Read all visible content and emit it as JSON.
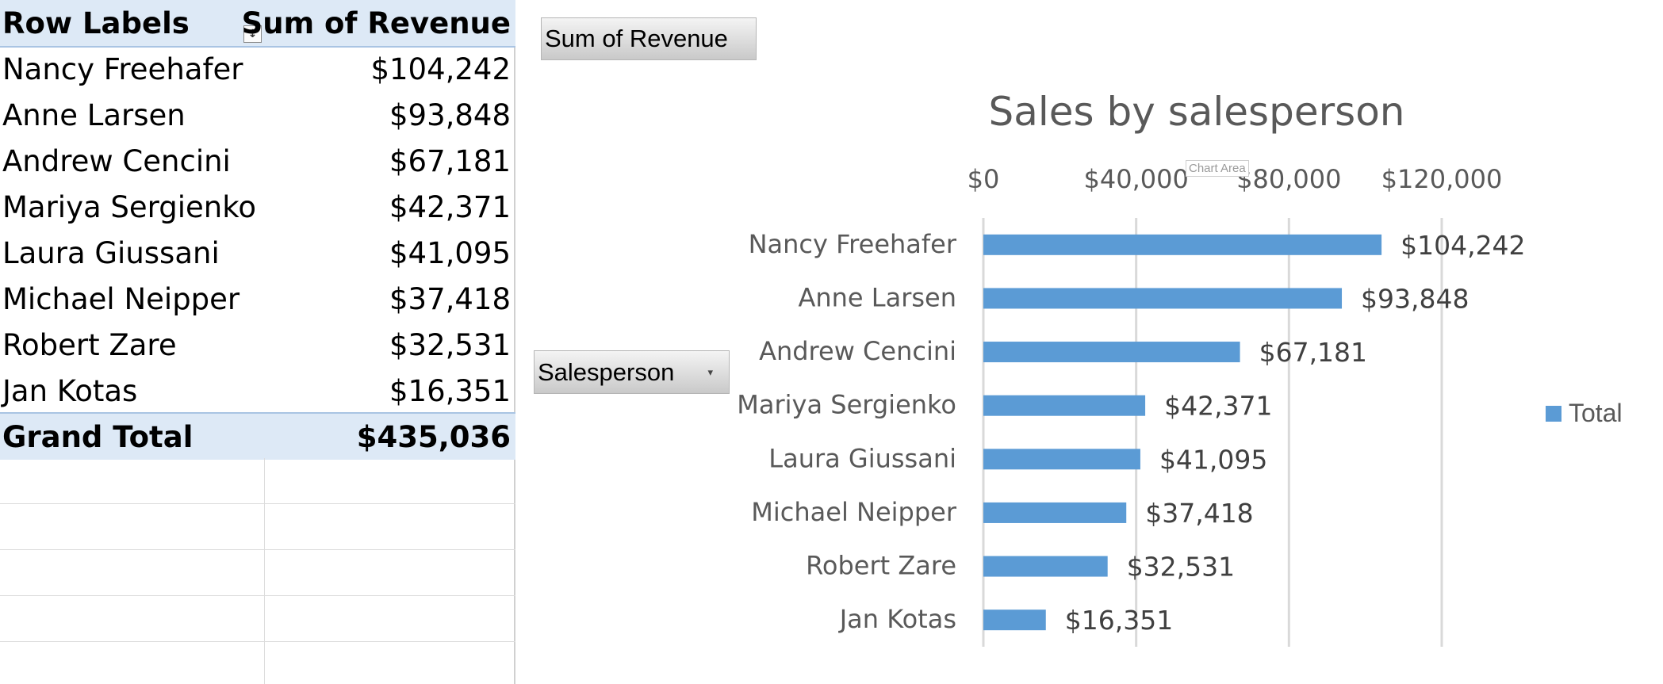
{
  "pivot": {
    "header_label": "Row Labels",
    "header_value": "Sum of Revenue",
    "filter_icon": "sort-filter-icon",
    "rows": [
      {
        "label": "Nancy Freehafer",
        "value": "$104,242"
      },
      {
        "label": "Anne Larsen",
        "value": "$93,848"
      },
      {
        "label": "Andrew Cencini",
        "value": "$67,181"
      },
      {
        "label": "Mariya Sergienko",
        "value": "$42,371"
      },
      {
        "label": "Laura Giussani",
        "value": "$41,095"
      },
      {
        "label": "Michael Neipper",
        "value": "$37,418"
      },
      {
        "label": "Robert Zare",
        "value": "$32,531"
      },
      {
        "label": "Jan Kotas",
        "value": "$16,351"
      }
    ],
    "total_label": "Grand Total",
    "total_value": "$435,036"
  },
  "chart_buttons": {
    "values_field": "Sum of Revenue",
    "axis_field": "Salesperson",
    "axis_field_icon": "dropdown-arrow-icon"
  },
  "tooltip": "Chart Area",
  "chart_data": {
    "type": "bar",
    "orientation": "horizontal",
    "title": "Sales by salesperson",
    "categories": [
      "Nancy Freehafer",
      "Anne Larsen",
      "Andrew Cencini",
      "Mariya Sergienko",
      "Laura Giussani",
      "Michael Neipper",
      "Robert Zare",
      "Jan Kotas"
    ],
    "series": [
      {
        "name": "Total",
        "values": [
          104242,
          93848,
          67181,
          42371,
          41095,
          37418,
          32531,
          16351
        ],
        "color": "#5b9bd5"
      }
    ],
    "data_labels": [
      "$104,242",
      "$93,848",
      "$67,181",
      "$42,371",
      "$41,095",
      "$37,418",
      "$32,531",
      "$16,351"
    ],
    "xlim": [
      0,
      120000
    ],
    "x_ticks": [
      0,
      40000,
      80000,
      120000
    ],
    "x_tick_labels": [
      "$0",
      "$40,000",
      "$80,000",
      "$120,000"
    ],
    "axis_position": "top",
    "grid": true,
    "legend": "right"
  }
}
